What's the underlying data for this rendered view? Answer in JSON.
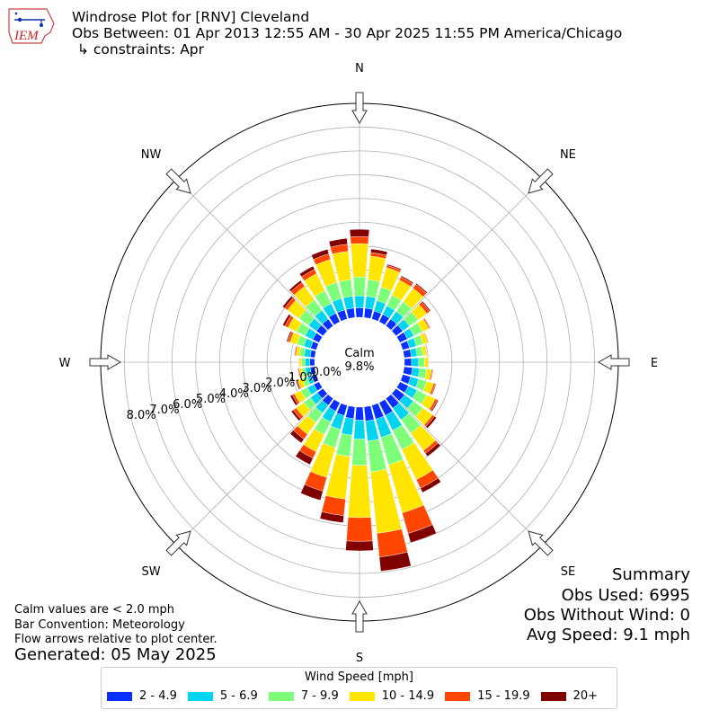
{
  "header": {
    "title": "Windrose Plot for [RNV] Cleveland",
    "obs_between": "Obs Between: 01 Apr 2013 12:55 AM - 30 Apr 2025 11:55 PM America/Chicago",
    "constraints": "↳ constraints: Apr",
    "logo_text": "IEM"
  },
  "summary": {
    "heading": "Summary",
    "obs_used": "Obs Used: 6995",
    "obs_without_wind": "Obs Without Wind: 0",
    "avg_speed": "Avg Speed: 9.1 mph"
  },
  "notes": {
    "calm_def": "Calm values are < 2.0 mph",
    "bar_convention": "Bar Convention: Meteorology",
    "flow_arrows": "Flow arrows relative to plot center.",
    "generated": "Generated: 05 May 2025"
  },
  "legend": {
    "title": "Wind Speed [mph]",
    "items": [
      {
        "label": "2 - 4.9",
        "color": "#0a2fff"
      },
      {
        "label": "5 - 6.9",
        "color": "#00d4ee"
      },
      {
        "label": "7 - 9.9",
        "color": "#7dff7a"
      },
      {
        "label": "10 - 14.9",
        "color": "#ffe500"
      },
      {
        "label": "15 - 19.9",
        "color": "#ff4600"
      },
      {
        "label": "20+",
        "color": "#800000"
      }
    ]
  },
  "chart_data": {
    "type": "windrose",
    "calm_label": "Calm",
    "calm_value": "9.8%",
    "calm_percent": 9.8,
    "directions": [
      "N",
      "NE",
      "E",
      "SE",
      "S",
      "SW",
      "W",
      "NW"
    ],
    "radial_ticks": [
      0,
      1,
      2,
      3,
      4,
      5,
      6,
      7,
      8
    ],
    "radial_tick_labels": [
      "0.0%",
      "1.0%",
      "2.0%",
      "3.0%",
      "4.0%",
      "5.0%",
      "6.0%",
      "7.0%",
      "8.0%"
    ],
    "rmax": 9.0,
    "sector_count": 36,
    "bar_convention": "Meteorology",
    "series_colors": [
      "#0a2fff",
      "#00d4ee",
      "#7dff7a",
      "#ffe500",
      "#ff4600",
      "#800000"
    ],
    "sectors": [
      {
        "dir": 0,
        "values": [
          0.4,
          0.5,
          0.8,
          1.4,
          0.3,
          0.3
        ]
      },
      {
        "dir": 10,
        "values": [
          0.4,
          0.5,
          0.7,
          1.0,
          0.15,
          0.15
        ]
      },
      {
        "dir": 20,
        "values": [
          0.35,
          0.45,
          0.6,
          0.85,
          0.1,
          0.05
        ]
      },
      {
        "dir": 30,
        "values": [
          0.35,
          0.4,
          0.5,
          0.7,
          0.15,
          0.05
        ]
      },
      {
        "dir": 40,
        "values": [
          0.35,
          0.4,
          0.5,
          0.7,
          0.2,
          0.05
        ]
      },
      {
        "dir": 50,
        "values": [
          0.35,
          0.35,
          0.45,
          0.45,
          0.15,
          0.05
        ]
      },
      {
        "dir": 60,
        "values": [
          0.35,
          0.3,
          0.4,
          0.3,
          0.05,
          0.02
        ]
      },
      {
        "dir": 70,
        "values": [
          0.3,
          0.3,
          0.3,
          0.2,
          0.03,
          0.01
        ]
      },
      {
        "dir": 80,
        "values": [
          0.3,
          0.25,
          0.25,
          0.15,
          0.02,
          0.0
        ]
      },
      {
        "dir": 90,
        "values": [
          0.3,
          0.3,
          0.25,
          0.15,
          0.02,
          0.0
        ]
      },
      {
        "dir": 100,
        "values": [
          0.35,
          0.3,
          0.3,
          0.2,
          0.05,
          0.02
        ]
      },
      {
        "dir": 110,
        "values": [
          0.35,
          0.35,
          0.35,
          0.3,
          0.08,
          0.03
        ]
      },
      {
        "dir": 120,
        "values": [
          0.4,
          0.4,
          0.45,
          0.4,
          0.1,
          0.05
        ]
      },
      {
        "dir": 130,
        "values": [
          0.45,
          0.45,
          0.5,
          0.5,
          0.1,
          0.1
        ]
      },
      {
        "dir": 140,
        "values": [
          0.5,
          0.6,
          0.7,
          0.9,
          0.15,
          0.15
        ]
      },
      {
        "dir": 150,
        "values": [
          0.6,
          0.7,
          0.9,
          1.4,
          0.4,
          0.2
        ]
      },
      {
        "dir": 160,
        "values": [
          0.6,
          0.8,
          1.2,
          2.1,
          0.9,
          0.4
        ]
      },
      {
        "dir": 170,
        "values": [
          0.6,
          0.85,
          1.3,
          2.6,
          1.0,
          0.6
        ]
      },
      {
        "dir": 180,
        "values": [
          0.55,
          0.8,
          1.1,
          2.2,
          1.0,
          0.4
        ]
      },
      {
        "dir": 190,
        "values": [
          0.5,
          0.7,
          0.9,
          1.8,
          0.7,
          0.3
        ]
      },
      {
        "dir": 200,
        "values": [
          0.45,
          0.6,
          0.8,
          1.3,
          0.6,
          0.4
        ]
      },
      {
        "dir": 210,
        "values": [
          0.4,
          0.5,
          0.6,
          0.8,
          0.3,
          0.3
        ]
      },
      {
        "dir": 220,
        "values": [
          0.35,
          0.4,
          0.5,
          0.6,
          0.25,
          0.2
        ]
      },
      {
        "dir": 230,
        "values": [
          0.3,
          0.35,
          0.35,
          0.4,
          0.15,
          0.1
        ]
      },
      {
        "dir": 240,
        "values": [
          0.25,
          0.3,
          0.3,
          0.3,
          0.1,
          0.1
        ]
      },
      {
        "dir": 250,
        "values": [
          0.2,
          0.2,
          0.2,
          0.2,
          0.05,
          0.05
        ]
      },
      {
        "dir": 260,
        "values": [
          0.2,
          0.2,
          0.15,
          0.1,
          0.05,
          0.02
        ]
      },
      {
        "dir": 270,
        "values": [
          0.2,
          0.2,
          0.15,
          0.1,
          0.02,
          0.01
        ]
      },
      {
        "dir": 280,
        "values": [
          0.2,
          0.25,
          0.2,
          0.15,
          0.05,
          0.02
        ]
      },
      {
        "dir": 290,
        "values": [
          0.25,
          0.3,
          0.3,
          0.3,
          0.1,
          0.05
        ]
      },
      {
        "dir": 300,
        "values": [
          0.3,
          0.35,
          0.4,
          0.4,
          0.15,
          0.1
        ]
      },
      {
        "dir": 310,
        "values": [
          0.35,
          0.4,
          0.5,
          0.6,
          0.15,
          0.1
        ]
      },
      {
        "dir": 320,
        "values": [
          0.35,
          0.45,
          0.55,
          0.7,
          0.2,
          0.1
        ]
      },
      {
        "dir": 330,
        "values": [
          0.4,
          0.45,
          0.6,
          0.8,
          0.2,
          0.15
        ]
      },
      {
        "dir": 340,
        "values": [
          0.4,
          0.5,
          0.7,
          1.0,
          0.25,
          0.2
        ]
      },
      {
        "dir": 350,
        "values": [
          0.4,
          0.5,
          0.7,
          1.2,
          0.3,
          0.25
        ]
      }
    ]
  }
}
